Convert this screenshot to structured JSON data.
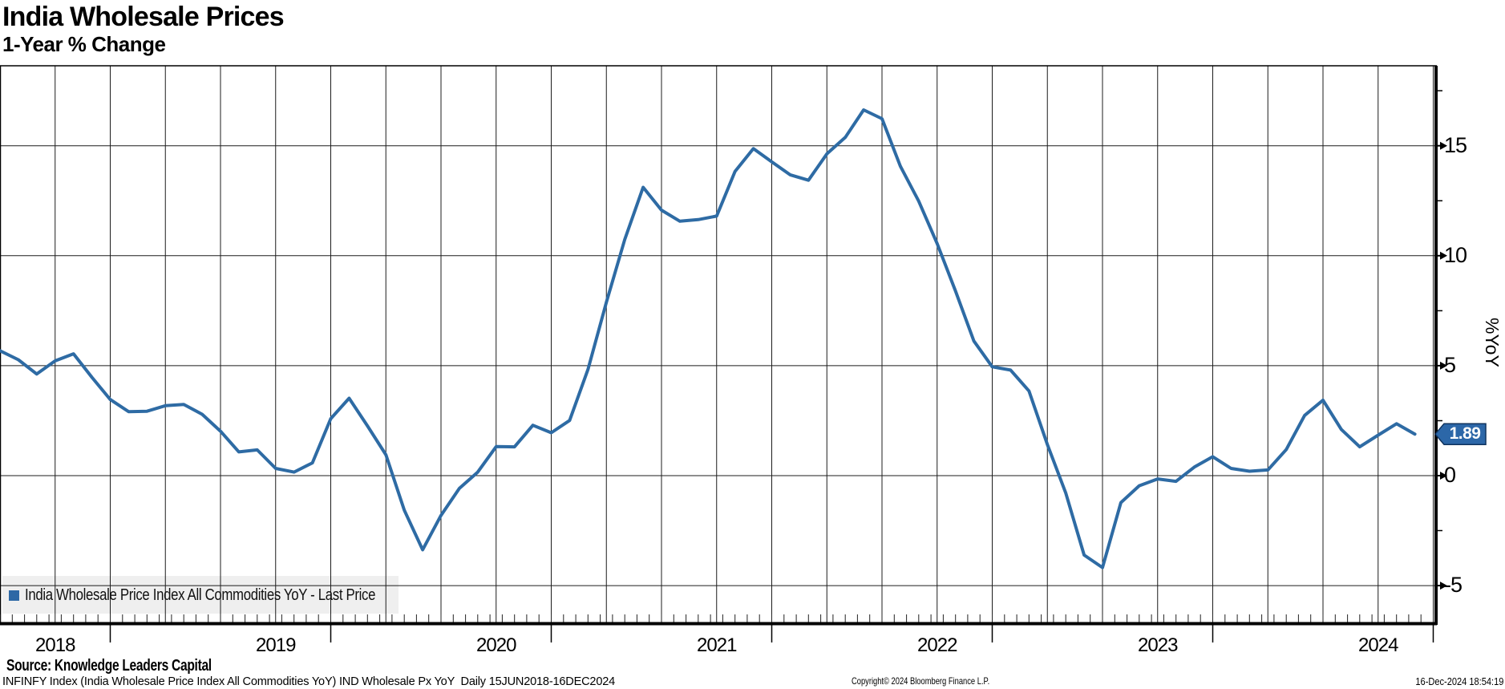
{
  "header": {
    "title": "India Wholesale Prices",
    "subtitle": "1-Year % Change"
  },
  "legend": {
    "marker_color": "#2d68a5",
    "label": "India Wholesale Price Index All Commodities YoY - Last Price"
  },
  "y_axis": {
    "label": "%YoY",
    "major_ticks": [
      15,
      10,
      5,
      0,
      -5
    ],
    "minor_ticks": [
      17.5,
      12.5,
      7.5,
      2.5,
      -2.5
    ]
  },
  "x_axis": {
    "year_labels": [
      "2018",
      "2019",
      "2020",
      "2021",
      "2022",
      "2023",
      "2024"
    ]
  },
  "badge": {
    "value": "1.89",
    "fill": "#2c67a8"
  },
  "footer": {
    "source": "Source: Knowledge Leaders Capital",
    "description": "INFINFY Index (India Wholesale Price Index All Commodities YoY) IND Wholesale Px YoY  Daily 15JUN2018-16DEC2024",
    "copyright": "Copyright© 2024 Bloomberg Finance L.P.",
    "timestamp": "16-Dec-2024 18:54:19"
  },
  "chart_data": {
    "type": "line",
    "title": "India Wholesale Prices — 1-Year % Change",
    "ylabel": "%YoY",
    "ylim": [
      -6.7,
      18.75
    ],
    "y_ticks": [
      15,
      10,
      5,
      0,
      -5
    ],
    "y_minor_ticks": [
      17.5,
      12.5,
      7.5,
      2.5,
      -2.5
    ],
    "x_range": [
      "2018-06",
      "2024-12"
    ],
    "grid": "both",
    "legend_position": "bottom-left",
    "last_price": 1.89,
    "series": [
      {
        "name": "India Wholesale Price Index All Commodities YoY",
        "color": "#2e6ba4",
        "x": [
          "2018-06",
          "2018-07",
          "2018-08",
          "2018-09",
          "2018-10",
          "2018-11",
          "2018-12",
          "2019-01",
          "2019-02",
          "2019-03",
          "2019-04",
          "2019-05",
          "2019-06",
          "2019-07",
          "2019-08",
          "2019-09",
          "2019-10",
          "2019-11",
          "2019-12",
          "2020-01",
          "2020-02",
          "2020-03",
          "2020-04",
          "2020-05",
          "2020-06",
          "2020-07",
          "2020-08",
          "2020-09",
          "2020-10",
          "2020-11",
          "2020-12",
          "2021-01",
          "2021-02",
          "2021-03",
          "2021-04",
          "2021-05",
          "2021-06",
          "2021-07",
          "2021-08",
          "2021-09",
          "2021-10",
          "2021-11",
          "2021-12",
          "2022-01",
          "2022-02",
          "2022-03",
          "2022-04",
          "2022-05",
          "2022-06",
          "2022-07",
          "2022-08",
          "2022-09",
          "2022-10",
          "2022-11",
          "2022-12",
          "2023-01",
          "2023-02",
          "2023-03",
          "2023-04",
          "2023-05",
          "2023-06",
          "2023-07",
          "2023-08",
          "2023-09",
          "2023-10",
          "2023-11",
          "2023-12",
          "2024-01",
          "2024-02",
          "2024-03",
          "2024-04",
          "2024-05",
          "2024-06",
          "2024-07",
          "2024-08",
          "2024-09",
          "2024-10",
          "2024-11"
        ],
        "values": [
          5.68,
          5.27,
          4.62,
          5.22,
          5.54,
          4.47,
          3.46,
          2.91,
          2.93,
          3.18,
          3.24,
          2.79,
          2.02,
          1.08,
          1.17,
          0.33,
          0.16,
          0.58,
          2.59,
          3.52,
          2.26,
          0.95,
          -1.57,
          -3.37,
          -1.81,
          -0.58,
          0.16,
          1.32,
          1.31,
          2.29,
          1.95,
          2.51,
          4.83,
          7.89,
          10.74,
          13.11,
          12.07,
          11.57,
          11.64,
          11.8,
          13.83,
          14.87,
          14.27,
          13.68,
          13.43,
          14.63,
          15.38,
          16.63,
          16.23,
          14.07,
          12.48,
          10.55,
          8.39,
          6.12,
          4.95,
          4.8,
          3.85,
          1.41,
          -0.79,
          -3.61,
          -4.18,
          -1.23,
          -0.46,
          -0.15,
          -0.26,
          0.39,
          0.86,
          0.33,
          0.2,
          0.26,
          1.19,
          2.74,
          3.43,
          2.1,
          1.31,
          1.84,
          2.36,
          1.89
        ]
      }
    ]
  }
}
